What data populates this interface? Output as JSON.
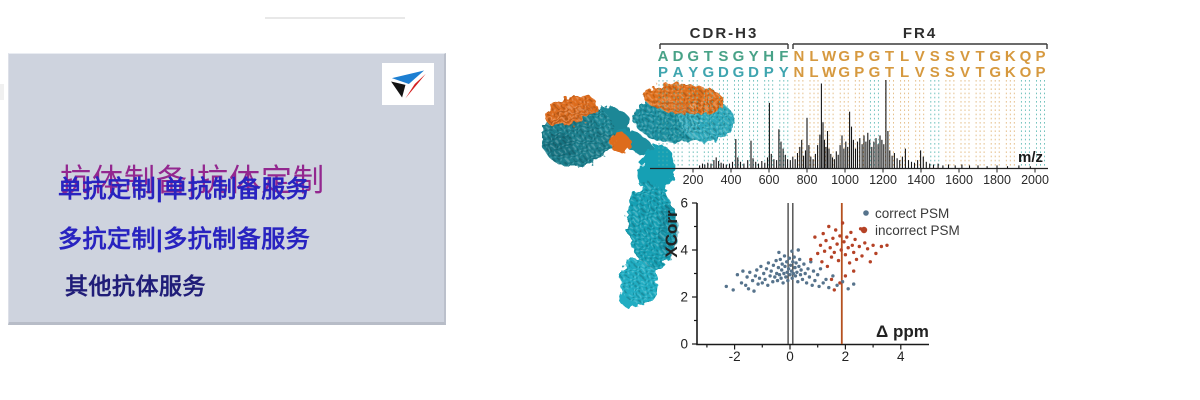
{
  "banner": {
    "panel": {
      "title": "抗体制备|抗体定制",
      "items": [
        "单抗定制|单抗制备服务",
        "多抗定制|多抗制备服务",
        "其他抗体服务"
      ],
      "colors": {
        "bg": "#ced3de",
        "title": "#93278f",
        "item": "#2823c0",
        "item_last": "#201d78"
      }
    },
    "logo": {
      "name": "triangle-brand-logo",
      "colors": {
        "top": "#1d7fd2",
        "left": "#141414",
        "right": "#d41f1f"
      }
    }
  },
  "figure": {
    "sequence_alignment": {
      "regions": [
        {
          "label": "CDR-H3"
        },
        {
          "label": "FR4"
        }
      ],
      "rows": [
        {
          "cdr": "ADGTSGYHF",
          "fr": "NLWGPGTLVSSVTGKQP"
        },
        {
          "cdr": "PAYGDGDPY",
          "fr": "NLWGPGTLVSSVTGKOP"
        }
      ],
      "colors": {
        "cdr_row1": "#48a287",
        "cdr_row2": "#3fa5af",
        "fr": "#d6993f",
        "dash_teal": "#55b5b0",
        "dash_tan": "#dfb273",
        "bracket": "#3a3a3a"
      },
      "dash_palette": [
        "teal",
        "teal",
        "teal",
        "teal",
        "teal",
        "teal",
        "teal",
        "teal",
        "teal",
        "tan",
        "tan",
        "tan",
        "tan",
        "tan",
        "teal",
        "tan",
        "tan",
        "tan",
        "teal",
        "tan",
        "tan",
        "tan",
        "tan",
        "tan",
        "teal",
        "teal"
      ]
    }
  },
  "chart_data": [
    {
      "id": "ms2-spectrum",
      "type": "bar",
      "title": "",
      "xlabel": "m/z",
      "ylabel": "",
      "xlim": [
        90,
        2070
      ],
      "x_ticks": [
        200,
        400,
        600,
        800,
        1000,
        1200,
        1400,
        1600,
        1800,
        2000
      ],
      "grid": false,
      "peak_color": "#141414",
      "peaks": [
        [
          235,
          0.03
        ],
        [
          250,
          0.05
        ],
        [
          262,
          0.04
        ],
        [
          278,
          0.06
        ],
        [
          295,
          0.05
        ],
        [
          310,
          0.09
        ],
        [
          322,
          0.12
        ],
        [
          335,
          0.08
        ],
        [
          348,
          0.06
        ],
        [
          360,
          0.05
        ],
        [
          375,
          0.04
        ],
        [
          392,
          0.05
        ],
        [
          408,
          0.07
        ],
        [
          425,
          0.33
        ],
        [
          436,
          0.12
        ],
        [
          450,
          0.07
        ],
        [
          468,
          0.05
        ],
        [
          488,
          0.09
        ],
        [
          505,
          0.31
        ],
        [
          516,
          0.11
        ],
        [
          530,
          0.07
        ],
        [
          545,
          0.05
        ],
        [
          562,
          0.08
        ],
        [
          578,
          0.06
        ],
        [
          592,
          0.12
        ],
        [
          602,
          0.74
        ],
        [
          612,
          0.16
        ],
        [
          626,
          0.1
        ],
        [
          640,
          0.09
        ],
        [
          652,
          0.44
        ],
        [
          663,
          0.3
        ],
        [
          674,
          0.22
        ],
        [
          686,
          0.15
        ],
        [
          698,
          0.1
        ],
        [
          712,
          0.09
        ],
        [
          725,
          0.13
        ],
        [
          738,
          0.1
        ],
        [
          750,
          0.17
        ],
        [
          762,
          0.24
        ],
        [
          772,
          0.32
        ],
        [
          782,
          0.14
        ],
        [
          792,
          0.2
        ],
        [
          800,
          0.57
        ],
        [
          810,
          0.26
        ],
        [
          820,
          0.13
        ],
        [
          832,
          0.1
        ],
        [
          844,
          0.16
        ],
        [
          856,
          0.26
        ],
        [
          868,
          0.38
        ],
        [
          876,
          0.96
        ],
        [
          884,
          0.52
        ],
        [
          892,
          0.32
        ],
        [
          900,
          0.24
        ],
        [
          908,
          0.42
        ],
        [
          916,
          0.22
        ],
        [
          925,
          0.16
        ],
        [
          934,
          0.12
        ],
        [
          944,
          0.1
        ],
        [
          954,
          0.19
        ],
        [
          964,
          0.15
        ],
        [
          974,
          0.26
        ],
        [
          984,
          0.37
        ],
        [
          994,
          0.22
        ],
        [
          1004,
          0.3
        ],
        [
          1014,
          0.24
        ],
        [
          1024,
          0.64
        ],
        [
          1034,
          0.47
        ],
        [
          1044,
          0.32
        ],
        [
          1055,
          0.22
        ],
        [
          1066,
          0.3
        ],
        [
          1078,
          0.34
        ],
        [
          1090,
          0.27
        ],
        [
          1100,
          0.37
        ],
        [
          1110,
          0.3
        ],
        [
          1120,
          0.4
        ],
        [
          1130,
          0.32
        ],
        [
          1141,
          0.24
        ],
        [
          1152,
          0.3
        ],
        [
          1163,
          0.34
        ],
        [
          1174,
          0.27
        ],
        [
          1184,
          0.37
        ],
        [
          1194,
          0.32
        ],
        [
          1204,
          0.27
        ],
        [
          1215,
          1.0
        ],
        [
          1226,
          0.42
        ],
        [
          1236,
          0.2
        ],
        [
          1248,
          0.14
        ],
        [
          1260,
          0.17
        ],
        [
          1274,
          0.11
        ],
        [
          1288,
          0.09
        ],
        [
          1302,
          0.13
        ],
        [
          1318,
          0.22
        ],
        [
          1334,
          0.09
        ],
        [
          1350,
          0.07
        ],
        [
          1366,
          0.06
        ],
        [
          1382,
          0.09
        ],
        [
          1398,
          0.2
        ],
        [
          1412,
          0.13
        ],
        [
          1428,
          0.07
        ],
        [
          1446,
          0.05
        ],
        [
          1466,
          0.04
        ],
        [
          1490,
          0.05
        ],
        [
          1515,
          0.03
        ],
        [
          1545,
          0.04
        ],
        [
          1580,
          0.03
        ],
        [
          1615,
          0.04
        ],
        [
          1655,
          0.03
        ],
        [
          1700,
          0.03
        ],
        [
          1748,
          0.02
        ],
        [
          1800,
          0.03
        ],
        [
          1855,
          0.02
        ],
        [
          1915,
          0.03
        ],
        [
          1975,
          0.02
        ]
      ]
    },
    {
      "id": "psm-scatter",
      "type": "scatter",
      "xlabel": "Δ ppm",
      "ylabel": "XCorr",
      "xlim": [
        -3.3,
        5.0
      ],
      "ylim": [
        0,
        6
      ],
      "x_ticks": [
        -2,
        0,
        2,
        4
      ],
      "y_ticks": [
        0,
        2,
        4,
        6
      ],
      "grid": false,
      "legend_position": "top-right",
      "vlines": [
        {
          "x": -0.07,
          "color": "#4a4a4a"
        },
        {
          "x": 0.1,
          "color": "#4a4a4a"
        },
        {
          "x": 1.87,
          "color": "#b5511f"
        }
      ],
      "series": [
        {
          "name": "correct PSM",
          "color": "#56738c",
          "points": [
            [
              -2.3,
              2.45
            ],
            [
              -2.05,
              2.3
            ],
            [
              -1.9,
              2.95
            ],
            [
              -1.75,
              2.6
            ],
            [
              -1.7,
              3.1
            ],
            [
              -1.6,
              2.5
            ],
            [
              -1.55,
              2.85
            ],
            [
              -1.5,
              2.35
            ],
            [
              -1.45,
              3.05
            ],
            [
              -1.35,
              2.7
            ],
            [
              -1.3,
              2.25
            ],
            [
              -1.25,
              2.9
            ],
            [
              -1.2,
              3.15
            ],
            [
              -1.15,
              2.55
            ],
            [
              -1.1,
              2.8
            ],
            [
              -1.05,
              3.3
            ],
            [
              -1.0,
              2.6
            ],
            [
              -0.95,
              3.0
            ],
            [
              -0.9,
              2.75
            ],
            [
              -0.85,
              3.2
            ],
            [
              -0.8,
              2.5
            ],
            [
              -0.78,
              3.45
            ],
            [
              -0.72,
              2.9
            ],
            [
              -0.68,
              3.1
            ],
            [
              -0.62,
              2.65
            ],
            [
              -0.6,
              3.35
            ],
            [
              -0.55,
              2.85
            ],
            [
              -0.5,
              3.55
            ],
            [
              -0.48,
              3.0
            ],
            [
              -0.45,
              2.7
            ],
            [
              -0.42,
              3.25
            ],
            [
              -0.4,
              3.9
            ],
            [
              -0.38,
              2.95
            ],
            [
              -0.35,
              3.6
            ],
            [
              -0.32,
              2.8
            ],
            [
              -0.3,
              3.15
            ],
            [
              -0.28,
              3.4
            ],
            [
              -0.25,
              2.6
            ],
            [
              -0.22,
              3.0
            ],
            [
              -0.2,
              3.75
            ],
            [
              -0.18,
              3.3
            ],
            [
              -0.15,
              2.85
            ],
            [
              -0.12,
              3.5
            ],
            [
              -0.1,
              3.05
            ],
            [
              -0.08,
              2.7
            ],
            [
              -0.05,
              3.2
            ],
            [
              -0.02,
              3.65
            ],
            [
              0.0,
              2.95
            ],
            [
              0.02,
              3.35
            ],
            [
              0.05,
              3.1
            ],
            [
              0.07,
              3.95
            ],
            [
              0.08,
              2.8
            ],
            [
              0.1,
              3.5
            ],
            [
              0.12,
              3.0
            ],
            [
              0.15,
              3.7
            ],
            [
              0.18,
              3.25
            ],
            [
              0.2,
              2.9
            ],
            [
              0.22,
              3.45
            ],
            [
              0.25,
              3.05
            ],
            [
              0.28,
              2.65
            ],
            [
              0.3,
              4.0
            ],
            [
              0.32,
              3.3
            ],
            [
              0.35,
              3.6
            ],
            [
              0.38,
              2.95
            ],
            [
              0.4,
              3.15
            ],
            [
              0.45,
              2.75
            ],
            [
              0.5,
              3.4
            ],
            [
              0.55,
              3.0
            ],
            [
              0.6,
              2.6
            ],
            [
              0.65,
              3.2
            ],
            [
              0.7,
              2.85
            ],
            [
              0.75,
              3.5
            ],
            [
              0.8,
              2.5
            ],
            [
              0.85,
              3.1
            ],
            [
              0.9,
              2.7
            ],
            [
              1.0,
              2.95
            ],
            [
              1.05,
              2.45
            ],
            [
              1.1,
              3.2
            ],
            [
              1.2,
              2.6
            ],
            [
              1.3,
              2.75
            ],
            [
              1.4,
              2.4
            ],
            [
              1.55,
              2.9
            ],
            [
              1.7,
              2.5
            ],
            [
              1.9,
              2.65
            ],
            [
              2.1,
              2.35
            ],
            [
              2.3,
              2.55
            ]
          ]
        },
        {
          "name": "incorrect PSM",
          "color": "#b54226",
          "points": [
            [
              0.75,
              3.6
            ],
            [
              0.9,
              4.55
            ],
            [
              1.0,
              3.85
            ],
            [
              1.1,
              4.2
            ],
            [
              1.15,
              3.5
            ],
            [
              1.2,
              4.7
            ],
            [
              1.25,
              3.95
            ],
            [
              1.3,
              4.4
            ],
            [
              1.35,
              3.3
            ],
            [
              1.4,
              5.0
            ],
            [
              1.45,
              4.1
            ],
            [
              1.5,
              2.75
            ],
            [
              1.5,
              3.7
            ],
            [
              1.55,
              4.5
            ],
            [
              1.6,
              2.3
            ],
            [
              1.6,
              3.9
            ],
            [
              1.65,
              4.85
            ],
            [
              1.7,
              4.25
            ],
            [
              1.75,
              3.55
            ],
            [
              1.8,
              2.6
            ],
            [
              1.8,
              4.6
            ],
            [
              1.85,
              4.0
            ],
            [
              1.9,
              5.15
            ],
            [
              1.95,
              4.35
            ],
            [
              2.0,
              2.9
            ],
            [
              2.0,
              3.8
            ],
            [
              2.05,
              4.55
            ],
            [
              2.1,
              4.1
            ],
            [
              2.15,
              3.45
            ],
            [
              2.2,
              4.75
            ],
            [
              2.25,
              4.2
            ],
            [
              2.3,
              3.1
            ],
            [
              2.3,
              3.9
            ],
            [
              2.35,
              4.45
            ],
            [
              2.4,
              3.6
            ],
            [
              2.5,
              4.15
            ],
            [
              2.55,
              4.9
            ],
            [
              2.6,
              3.75
            ],
            [
              2.7,
              4.3
            ],
            [
              2.8,
              4.05
            ],
            [
              2.9,
              3.5
            ],
            [
              3.0,
              4.2
            ],
            [
              3.1,
              3.85
            ],
            [
              3.3,
              4.15
            ],
            [
              3.5,
              4.2
            ]
          ]
        }
      ]
    }
  ]
}
